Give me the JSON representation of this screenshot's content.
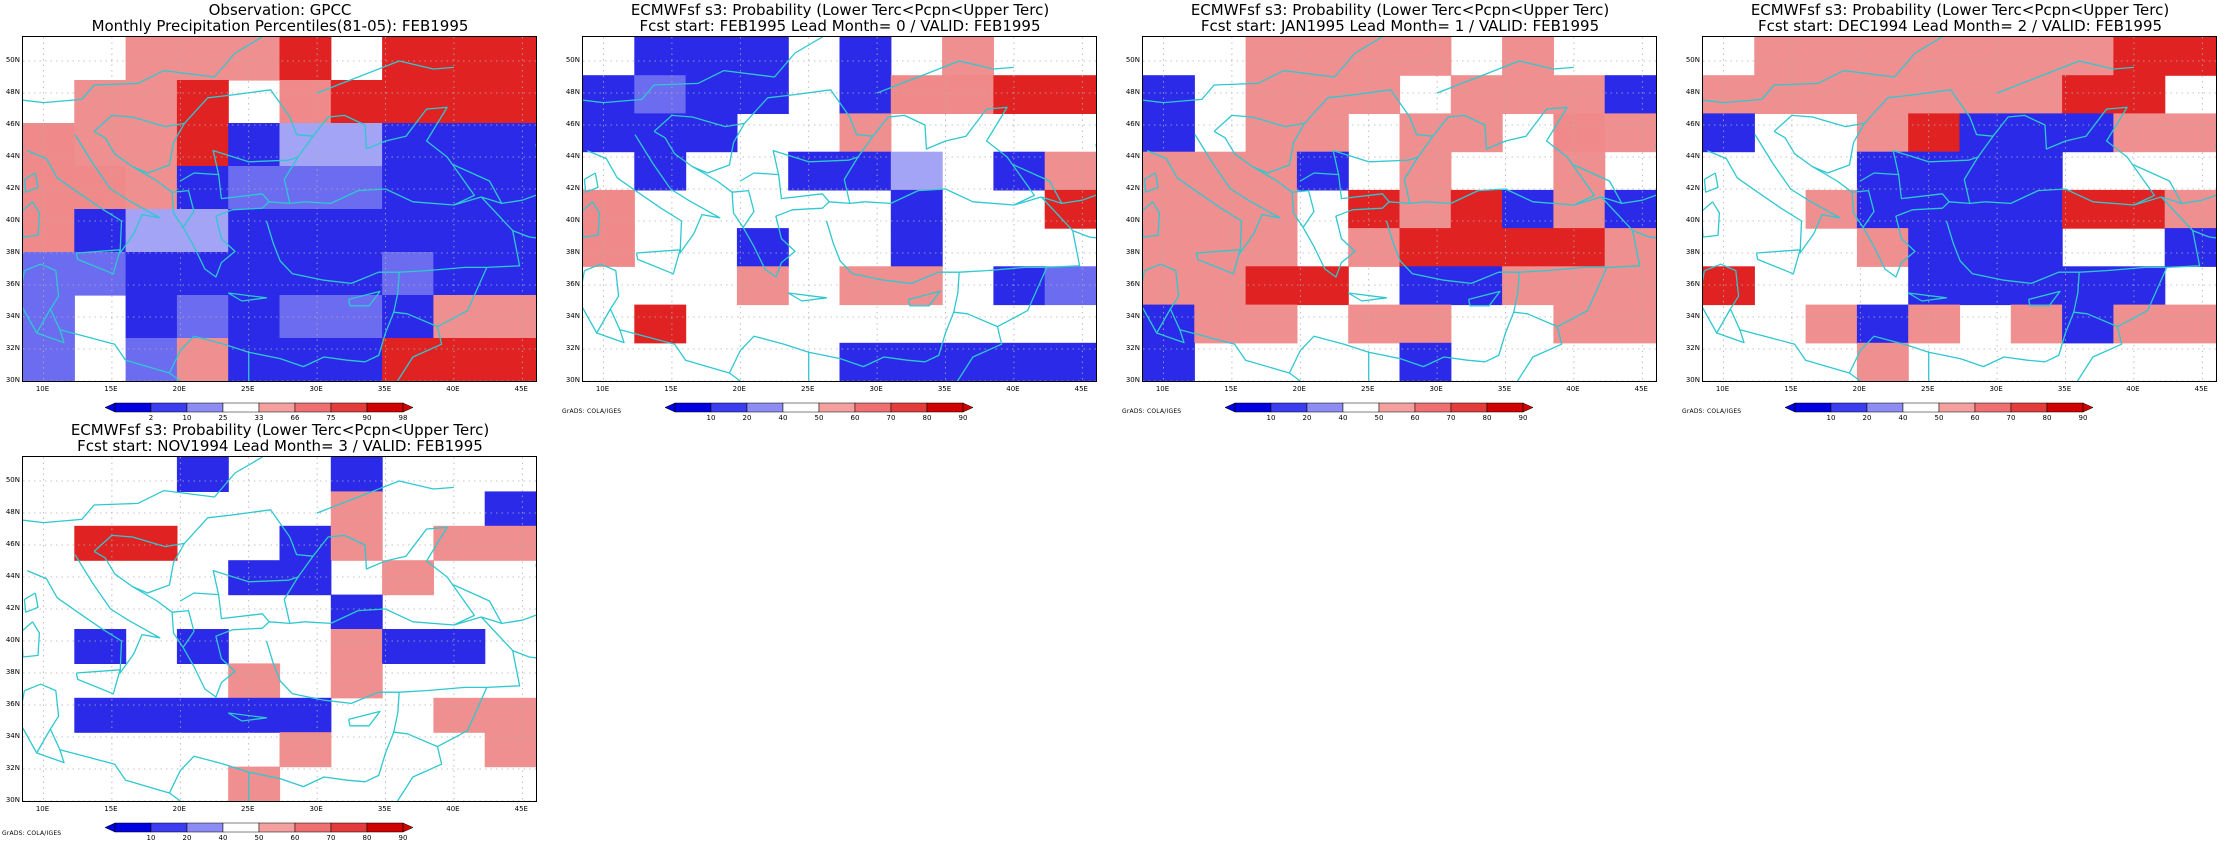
{
  "panels": [
    {
      "id": "obs",
      "title1": "Observation: GPCC",
      "title2": "Monthly Precipitation Percentiles(81-05): FEB1995",
      "colorbar_labels": [
        "2",
        "10",
        "25",
        "33",
        "66",
        "75",
        "90",
        "98"
      ],
      "credit": "",
      "grid": [
        "0055560666",
        "0556046666",
        "4556133111",
        "4451222111",
        "4133111111",
        "2211111211",
        "2012122155",
        "2025111666"
      ]
    },
    {
      "id": "lead0",
      "title1": "ECMWFsf s3: Probability (Lower Terc<Pcpn<Upper Terc)",
      "title2": "Fcst start: FEB1995   Lead Month= 0 / VALID: FEB1995",
      "colorbar_labels": [
        "10",
        "20",
        "40",
        "50",
        "60",
        "70",
        "80",
        "90"
      ],
      "credit": "GrADS: COLA/IGES",
      "grid": [
        "0111010500",
        "1211014466",
        "1110050000",
        "0100113015",
        "4000001006",
        "4001001000",
        "0005055012",
        "0600000000",
        "0000011111"
      ]
    },
    {
      "id": "lead1",
      "title1": "ECMWFsf s3: Probability (Lower Terc<Pcpn<Upper Terc)",
      "title2": "Fcst start: JAN1995   Lead Month= 1 / VALID: FEB1995",
      "colorbar_labels": [
        "10",
        "20",
        "40",
        "50",
        "60",
        "70",
        "80",
        "90"
      ],
      "credit": "GrADS: COLA/IGES",
      "grid": [
        "0055550500",
        "1055505551",
        "1055055045",
        "5551050050",
        "5550656151",
        "5550566665",
        "5566011555",
        "1550550055",
        "1000010000"
      ]
    },
    {
      "id": "lead2",
      "title1": "ECMWFsf s3: Probability (Lower Terc<Pcpn<Upper Terc)",
      "title2": "Fcst start: DEC1994   Lead Month= 2 / VALID: FEB1995",
      "colorbar_labels": [
        "10",
        "20",
        "40",
        "50",
        "60",
        "70",
        "80",
        "90"
      ],
      "credit": "GrADS: COLA/IGES",
      "grid": [
        "0555555566",
        "5555555660",
        "1005611155",
        "0001111000",
        "0051111665",
        "0005111001",
        "6000111110",
        "0051505155",
        "0005000000"
      ]
    },
    {
      "id": "lead3",
      "title1": "ECMWFsf s3: Probability (Lower Terc<Pcpn<Upper Terc)",
      "title2": "Fcst start: NOV1994   Lead Month= 3 / VALID: FEB1995",
      "colorbar_labels": [
        "10",
        "20",
        "40",
        "50",
        "60",
        "70",
        "80",
        "90"
      ],
      "credit": "GrADS: COLA/IGES",
      "grid": [
        "0001001000",
        "0000005001",
        "0660015055",
        "0000110500",
        "0000001000",
        "0101005110",
        "0000505000",
        "0111110055",
        "0000050005",
        "0000500000"
      ]
    }
  ],
  "lat_labels": [
    "50N",
    "48N",
    "46N",
    "44N",
    "42N",
    "40N",
    "38N",
    "36N",
    "34N",
    "32N",
    "30N"
  ],
  "lon_labels": [
    "10E",
    "15E",
    "20E",
    "25E",
    "30E",
    "35E",
    "40E",
    "45E"
  ],
  "cell_colors": {
    "0": "#ffffff",
    "1": "#2a2ae8",
    "2": "#6c6cf0",
    "3": "#a4a4f6",
    "4": "#f08a8a",
    "5": "#f08f8f",
    "6": "#e02222"
  },
  "colorbar_colors": [
    "#0000e0",
    "#3c3cf0",
    "#8c8cf4",
    "#ffffff",
    "#f4a0a0",
    "#ee7070",
    "#e43c3c",
    "#d00000"
  ],
  "colors": {
    "coast": "#2ec8d0",
    "grid_dots": "#b0b0b0"
  }
}
